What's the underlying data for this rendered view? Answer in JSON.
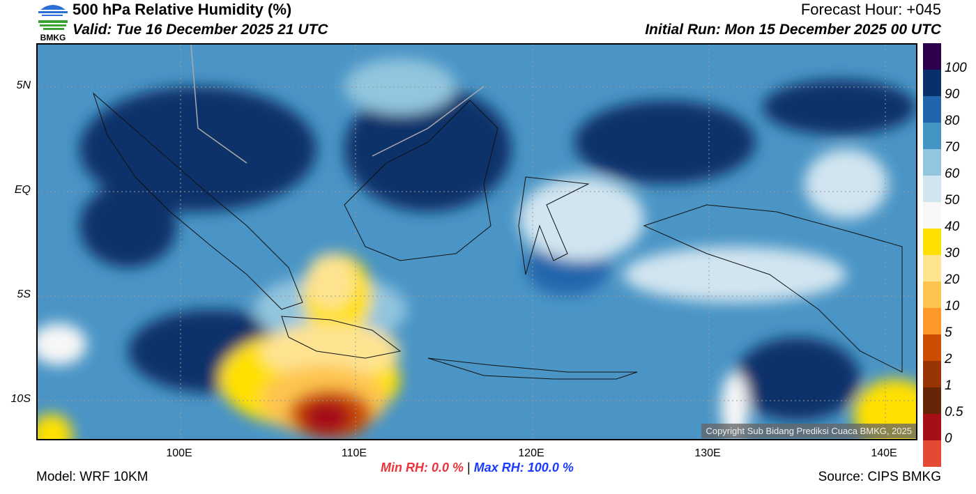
{
  "header": {
    "title": "500 hPa Relative Humidity (%)",
    "valid": "Valid: Tue 16 December 2025 21 UTC",
    "forecast_hour": "Forecast Hour: +045",
    "initial_run": "Initial Run: Mon 15 December 2025 00 UTC"
  },
  "logo": {
    "text": "BMKG"
  },
  "map": {
    "lat_labels": [
      "5N",
      "EQ",
      "5S",
      "10S"
    ],
    "lon_labels": [
      "100E",
      "110E",
      "120E",
      "130E",
      "140E"
    ],
    "copyright": "Copyright Sub Bidang Prediksi Cuaca BMKG, 2025"
  },
  "colorbar": {
    "labels": [
      "100",
      "90",
      "80",
      "70",
      "60",
      "50",
      "40",
      "30",
      "20",
      "10",
      "5",
      "2",
      "1",
      "0.5",
      "0"
    ],
    "colors": [
      "#2d004b",
      "#08306b",
      "#2166ac",
      "#4393c3",
      "#92c5de",
      "#d1e5f0",
      "#f7f7f7",
      "#ffe000",
      "#fee391",
      "#fec44f",
      "#fe9929",
      "#cc4c02",
      "#993404",
      "#662506",
      "#a50f15",
      "#e34a33"
    ]
  },
  "stats": {
    "min_label": "Min RH:",
    "min_value": "0.0 %",
    "sep": "|",
    "max_label": "Max RH:",
    "max_value": "100.0 %",
    "min_color": "#e8343a",
    "max_color": "#1a3bff"
  },
  "footer": {
    "model": "Model: WRF 10KM",
    "source": "Source: CIPS BMKG"
  }
}
